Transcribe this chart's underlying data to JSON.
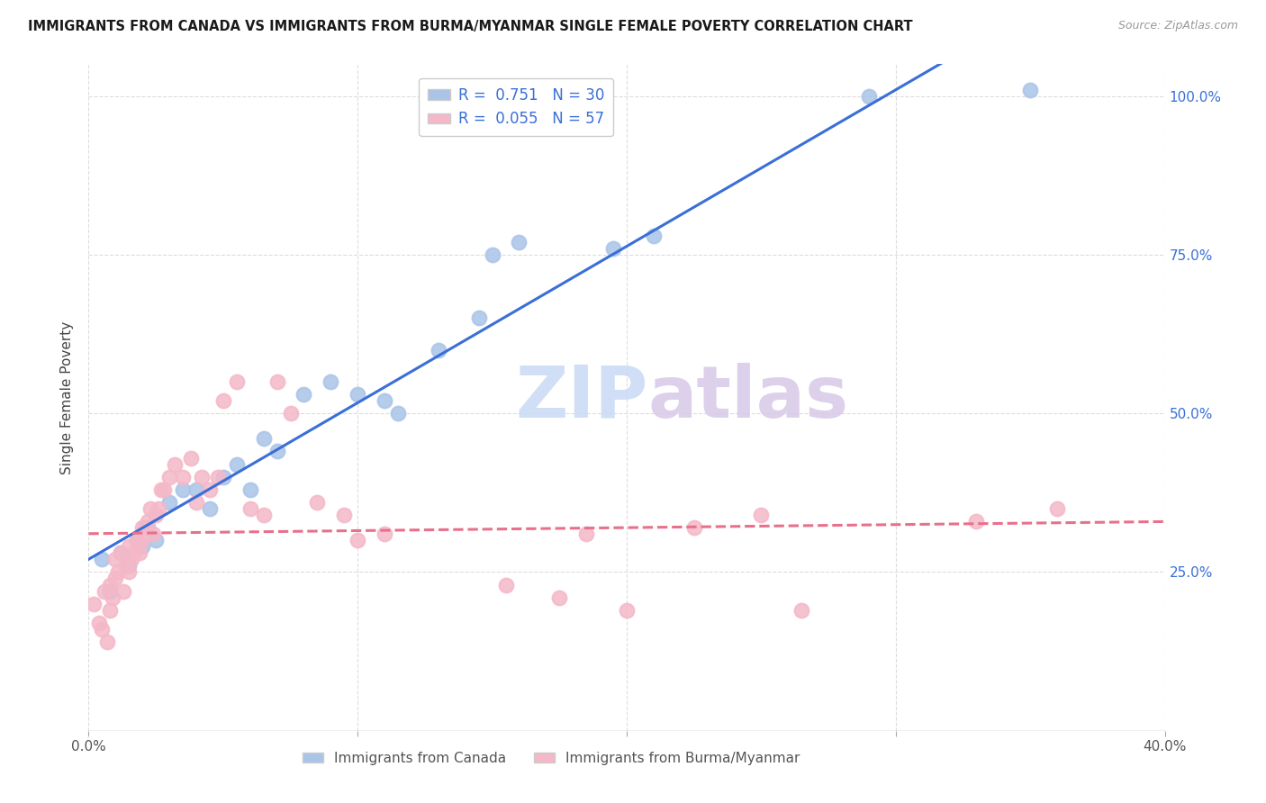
{
  "title": "IMMIGRANTS FROM CANADA VS IMMIGRANTS FROM BURMA/MYANMAR SINGLE FEMALE POVERTY CORRELATION CHART",
  "source": "Source: ZipAtlas.com",
  "ylabel": "Single Female Poverty",
  "xlim": [
    0.0,
    0.4
  ],
  "ylim": [
    0.0,
    1.05
  ],
  "xticks": [
    0.0,
    0.1,
    0.2,
    0.3,
    0.4
  ],
  "yticks": [
    0.0,
    0.25,
    0.5,
    0.75,
    1.0
  ],
  "legend_R_canada": "0.751",
  "legend_N_canada": "30",
  "legend_R_burma": "0.055",
  "legend_N_burma": "57",
  "canada_color": "#aac4e8",
  "burma_color": "#f4b8c8",
  "trendline_canada_color": "#3a6fd8",
  "trendline_burma_color": "#e8708a",
  "watermark_zip": "ZIP",
  "watermark_atlas": "atlas",
  "canada_scatter_x": [
    0.005,
    0.008,
    0.012,
    0.015,
    0.018,
    0.02,
    0.022,
    0.025,
    0.03,
    0.035,
    0.04,
    0.045,
    0.05,
    0.055,
    0.06,
    0.065,
    0.07,
    0.08,
    0.09,
    0.1,
    0.11,
    0.115,
    0.13,
    0.145,
    0.15,
    0.16,
    0.195,
    0.21,
    0.29,
    0.35
  ],
  "canada_scatter_y": [
    0.27,
    0.22,
    0.28,
    0.26,
    0.3,
    0.29,
    0.32,
    0.3,
    0.36,
    0.38,
    0.38,
    0.35,
    0.4,
    0.42,
    0.38,
    0.46,
    0.44,
    0.53,
    0.55,
    0.53,
    0.52,
    0.5,
    0.6,
    0.65,
    0.75,
    0.77,
    0.76,
    0.78,
    1.0,
    1.01
  ],
  "burma_scatter_x": [
    0.002,
    0.004,
    0.005,
    0.006,
    0.007,
    0.008,
    0.008,
    0.009,
    0.01,
    0.01,
    0.011,
    0.012,
    0.013,
    0.014,
    0.015,
    0.015,
    0.016,
    0.017,
    0.018,
    0.019,
    0.02,
    0.02,
    0.021,
    0.022,
    0.023,
    0.024,
    0.025,
    0.026,
    0.027,
    0.028,
    0.03,
    0.032,
    0.035,
    0.038,
    0.04,
    0.042,
    0.045,
    0.048,
    0.05,
    0.055,
    0.06,
    0.065,
    0.07,
    0.075,
    0.085,
    0.095,
    0.1,
    0.11,
    0.155,
    0.175,
    0.185,
    0.2,
    0.225,
    0.25,
    0.265,
    0.33,
    0.36
  ],
  "burma_scatter_y": [
    0.2,
    0.17,
    0.16,
    0.22,
    0.14,
    0.19,
    0.23,
    0.21,
    0.24,
    0.27,
    0.25,
    0.28,
    0.22,
    0.26,
    0.25,
    0.29,
    0.27,
    0.28,
    0.3,
    0.28,
    0.3,
    0.32,
    0.32,
    0.33,
    0.35,
    0.31,
    0.34,
    0.35,
    0.38,
    0.38,
    0.4,
    0.42,
    0.4,
    0.43,
    0.36,
    0.4,
    0.38,
    0.4,
    0.52,
    0.55,
    0.35,
    0.34,
    0.55,
    0.5,
    0.36,
    0.34,
    0.3,
    0.31,
    0.23,
    0.21,
    0.31,
    0.19,
    0.32,
    0.34,
    0.19,
    0.33,
    0.35
  ],
  "background_color": "#ffffff",
  "grid_color": "#dddddd"
}
